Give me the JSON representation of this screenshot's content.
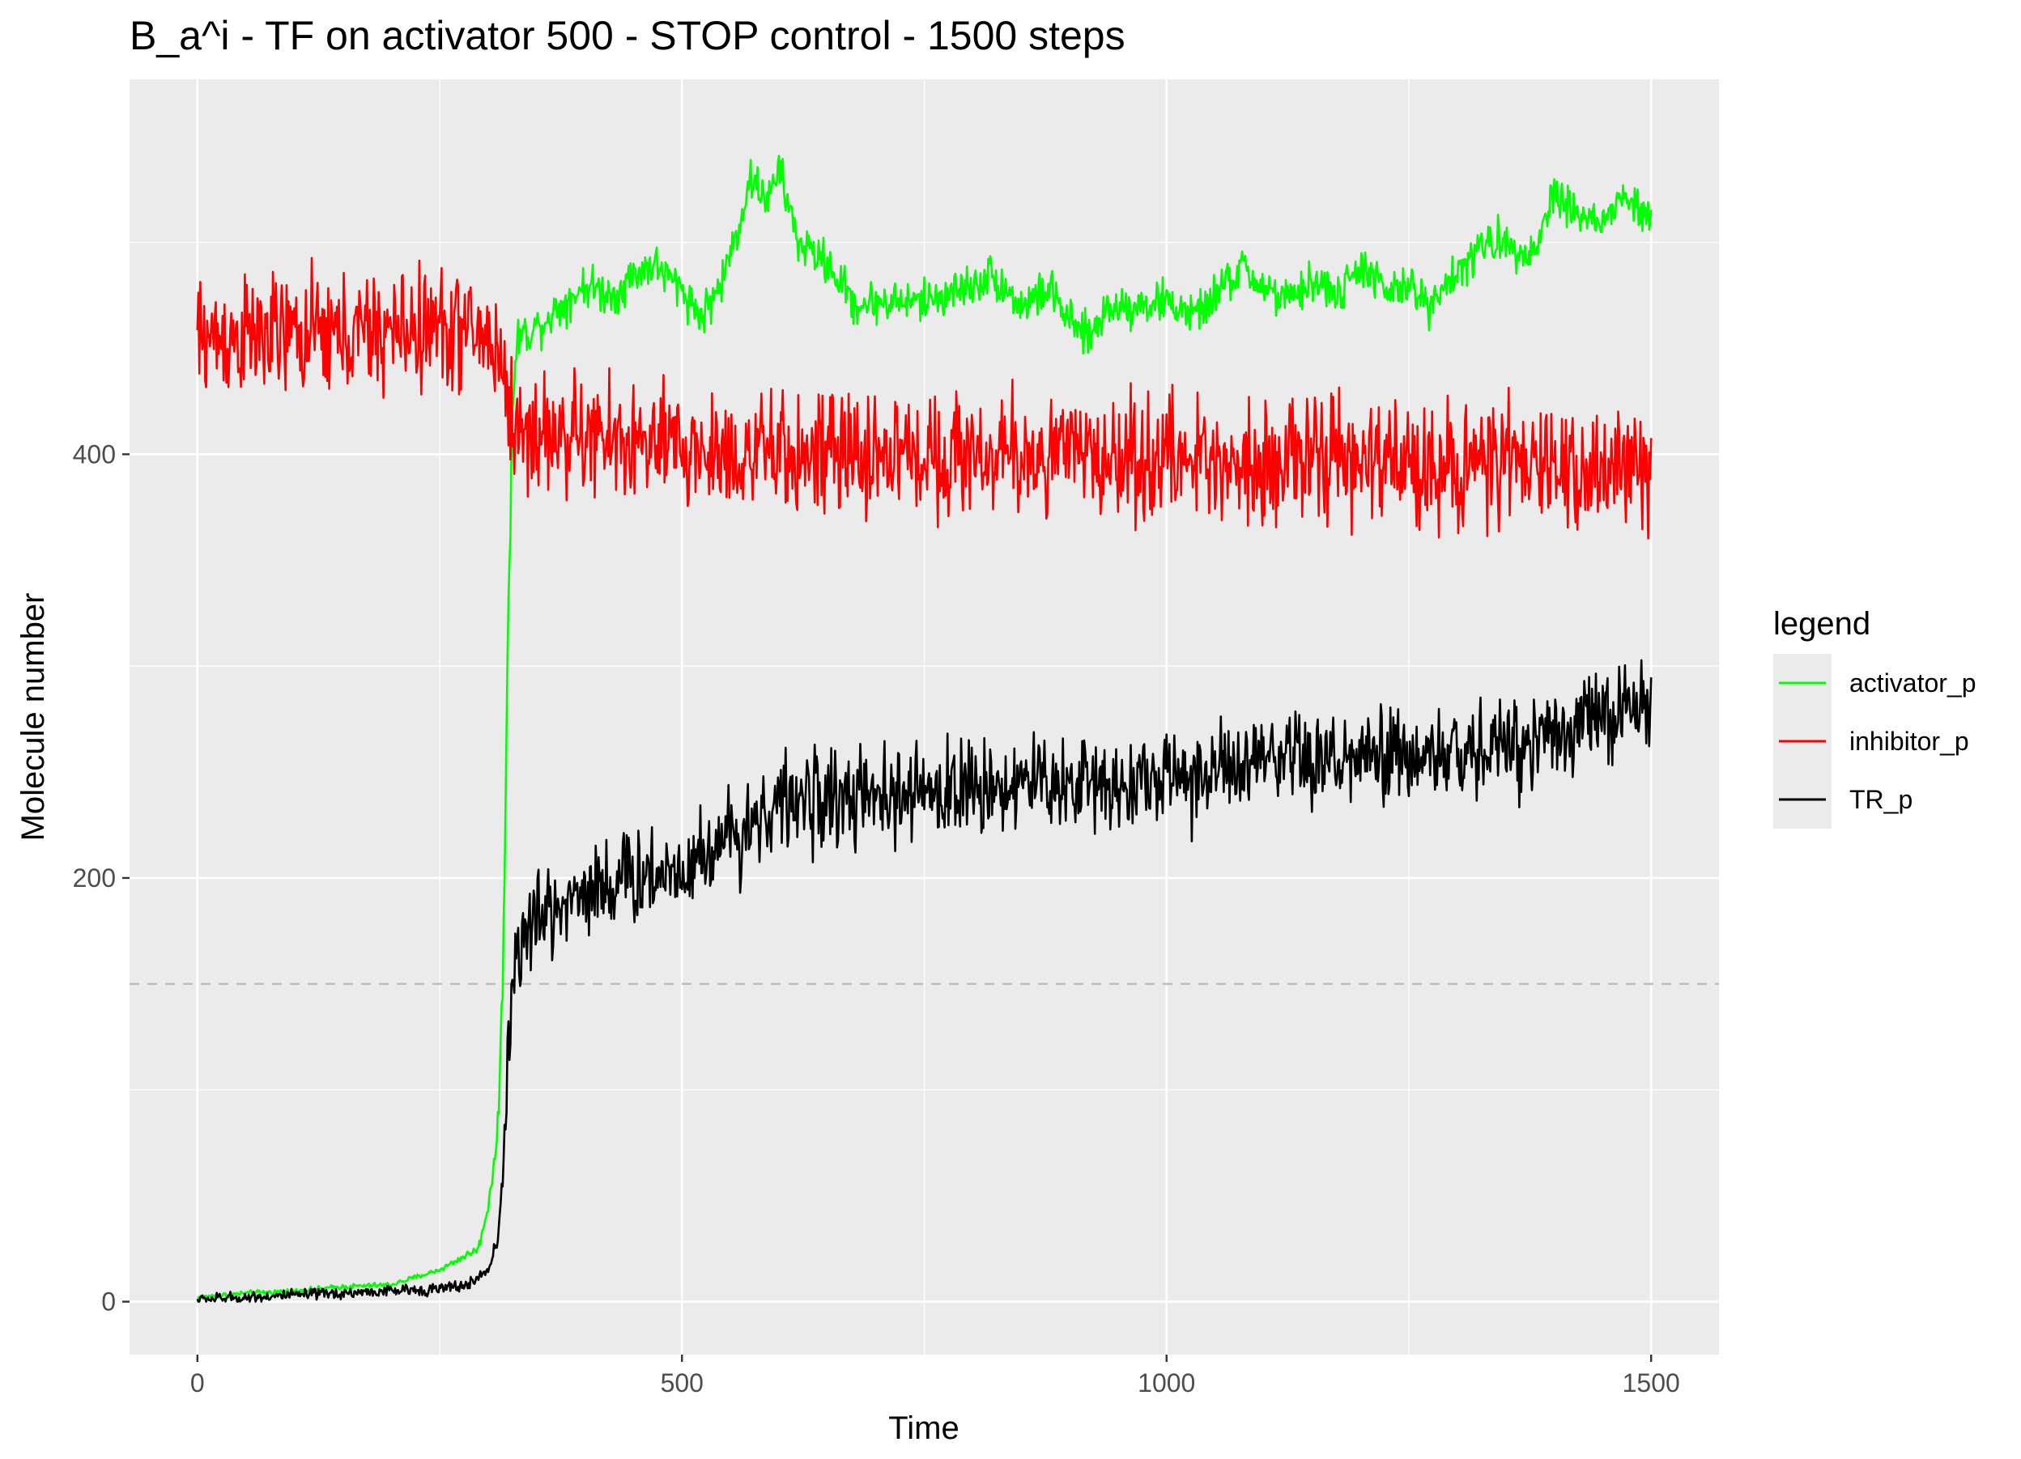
{
  "chart_data": {
    "type": "line",
    "title": "B_a^i - TF on activator 500 - STOP control - 1500 steps",
    "xlabel": "Time",
    "ylabel": "Molecule number",
    "xlim": [
      -70,
      1570
    ],
    "ylim": [
      -25,
      577
    ],
    "x_ticks": [
      0,
      500,
      1000,
      1500
    ],
    "x_tick_labels": [
      "0",
      "500",
      "1000",
      "1500"
    ],
    "y_ticks": [
      0,
      200,
      400
    ],
    "y_tick_labels": [
      "0",
      "200",
      "400"
    ],
    "grid": true,
    "background": "#ebebeb",
    "reference_line": {
      "y": 150,
      "style": "dashed",
      "color": "#bdbdbd"
    },
    "legend": {
      "title": "legend",
      "position": "right"
    },
    "series": [
      {
        "name": "activator_p",
        "color": "#00ff00",
        "noise": 7,
        "x": [
          0,
          50,
          100,
          150,
          200,
          250,
          270,
          290,
          300,
          310,
          315,
          320,
          325,
          330,
          350,
          400,
          430,
          450,
          470,
          500,
          520,
          540,
          560,
          570,
          590,
          600,
          620,
          650,
          680,
          700,
          750,
          800,
          820,
          850,
          880,
          900,
          920,
          940,
          960,
          1000,
          1030,
          1060,
          1080,
          1100,
          1130,
          1150,
          1180,
          1200,
          1230,
          1250,
          1270,
          1280,
          1300,
          1330,
          1350,
          1380,
          1400,
          1420,
          1450,
          1470,
          1500
        ],
        "values": [
          2,
          4,
          5,
          7,
          8,
          15,
          20,
          25,
          45,
          80,
          150,
          300,
          420,
          455,
          460,
          480,
          475,
          485,
          490,
          478,
          465,
          480,
          510,
          530,
          520,
          535,
          500,
          490,
          470,
          472,
          472,
          480,
          485,
          470,
          478,
          462,
          455,
          470,
          470,
          472,
          465,
          480,
          488,
          478,
          472,
          482,
          475,
          490,
          475,
          480,
          470,
          478,
          485,
          500,
          500,
          495,
          525,
          515,
          508,
          522,
          510
        ]
      },
      {
        "name": "inhibitor_p",
        "color": "#ff0000",
        "noise": 20,
        "x": [
          0,
          50,
          100,
          150,
          200,
          250,
          280,
          300,
          310,
          320,
          325,
          330,
          350,
          400,
          450,
          500,
          550,
          600,
          650,
          700,
          750,
          800,
          850,
          900,
          950,
          1000,
          1050,
          1100,
          1150,
          1200,
          1250,
          1300,
          1350,
          1400,
          1450,
          1500
        ],
        "values": [
          455,
          455,
          456,
          456,
          458,
          460,
          458,
          455,
          448,
          430,
          415,
          410,
          410,
          408,
          405,
          402,
          400,
          400,
          399,
          400,
          400,
          400,
          399,
          400,
          398,
          398,
          397,
          397,
          398,
          396,
          396,
          395,
          395,
          394,
          393,
          392
        ]
      },
      {
        "name": "TR_p",
        "color": "#000000",
        "noise": 16,
        "x": [
          0,
          50,
          100,
          150,
          200,
          250,
          280,
          300,
          310,
          315,
          320,
          325,
          330,
          350,
          400,
          450,
          500,
          550,
          600,
          650,
          700,
          750,
          800,
          850,
          900,
          950,
          1000,
          1050,
          1100,
          1150,
          1200,
          1250,
          1300,
          1350,
          1400,
          1450,
          1500
        ],
        "values": [
          1,
          2,
          3,
          4,
          5,
          6,
          8,
          15,
          30,
          60,
          110,
          150,
          165,
          180,
          195,
          200,
          205,
          220,
          235,
          238,
          236,
          240,
          243,
          245,
          245,
          245,
          247,
          250,
          253,
          255,
          255,
          257,
          258,
          262,
          270,
          276,
          282
        ]
      }
    ]
  }
}
